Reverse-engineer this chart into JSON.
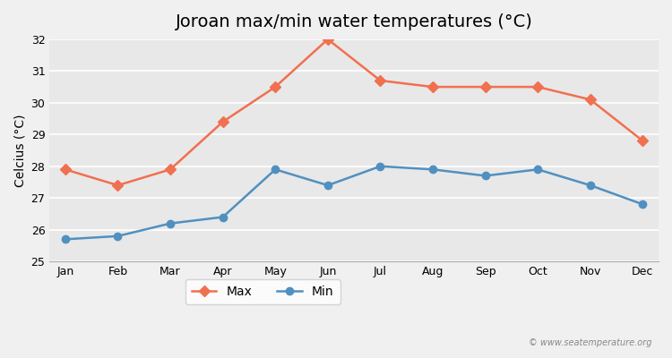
{
  "title": "Joroan max/min water temperatures (°C)",
  "xlabel": "",
  "ylabel": "Celcius (°C)",
  "months": [
    "Jan",
    "Feb",
    "Mar",
    "Apr",
    "May",
    "Jun",
    "Jul",
    "Aug",
    "Sep",
    "Oct",
    "Nov",
    "Dec"
  ],
  "max_values": [
    27.9,
    27.4,
    27.9,
    29.4,
    30.5,
    32.0,
    30.7,
    30.5,
    30.5,
    30.5,
    30.1,
    28.8
  ],
  "min_values": [
    25.7,
    25.8,
    26.2,
    26.4,
    27.9,
    27.4,
    28.0,
    27.9,
    27.7,
    27.9,
    27.4,
    26.8
  ],
  "max_color": "#f07050",
  "min_color": "#5090c0",
  "ylim": [
    25,
    32
  ],
  "yticks": [
    25,
    26,
    27,
    28,
    29,
    30,
    31,
    32
  ],
  "background_color": "#f0f0f0",
  "plot_bg_color": "#e8e8e8",
  "grid_color": "#ffffff",
  "title_fontsize": 14,
  "label_fontsize": 10,
  "tick_fontsize": 9,
  "legend_labels": [
    "Max",
    "Min"
  ],
  "watermark": "© www.seatemperature.org"
}
